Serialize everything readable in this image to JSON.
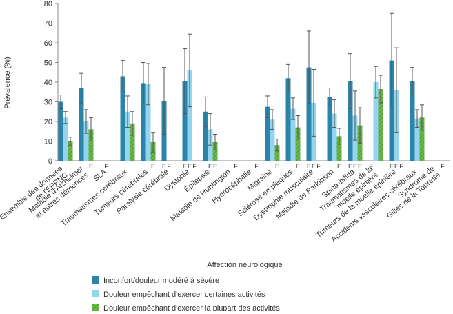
{
  "chart_data": {
    "type": "bar",
    "y_label": "Prévalence (%)",
    "x_label": "Affection neurologique",
    "categories": [
      "Ensemble des données\nde l'EPPNC",
      "Maladie d'Alzheimer\net autres démences",
      "SLA",
      "Traumatismes cérébraux",
      "Tumeurs cérébrales",
      "Paralysie cérébrale",
      "Dystonie",
      "Épilepsie",
      "Maladie de Huntington",
      "Hydrocéphalie",
      "Migraine",
      "Sclérose en plaques",
      "Dystrophie musculaire",
      "Maladie de Parkinson",
      "Spina-bifida",
      "Traumatismes de la\nmoelle épinière",
      "Tumeurs de la moelle épinière",
      "Accidents vasculaires cérébraux",
      "Syndrome de\nGilles de la Tourette"
    ],
    "series": [
      {
        "name": "Inconfort/douleur modéré à sévère",
        "color": "#2b84aa",
        "values": [
          30,
          37,
          null,
          43,
          39.5,
          30.5,
          40.5,
          25,
          null,
          null,
          27.5,
          42,
          47.5,
          32.5,
          40.5,
          null,
          51,
          40.5,
          null
        ],
        "errors": [
          3.5,
          7.5,
          null,
          8,
          10.5,
          17,
          16.5,
          7.5,
          null,
          null,
          5.5,
          7,
          18.5,
          4.5,
          14,
          null,
          24,
          7,
          null
        ],
        "flags": [
          null,
          null,
          null,
          null,
          null,
          "E",
          "E",
          null,
          null,
          null,
          null,
          null,
          "E",
          null,
          "E",
          "F",
          "E",
          null,
          null
        ]
      },
      {
        "name": "Douleur empêchant d'exercer certaines activités",
        "color": "#93d5ee",
        "values": [
          22,
          20,
          null,
          25,
          39,
          null,
          46,
          16,
          null,
          null,
          21,
          26.5,
          29.5,
          24,
          23,
          40,
          36,
          21.5,
          null
        ],
        "errors": [
          3,
          6,
          null,
          8,
          10.5,
          null,
          18.5,
          8,
          null,
          null,
          5,
          5.5,
          17,
          7,
          12.5,
          8,
          21.5,
          4.5,
          null
        ],
        "flags": [
          null,
          null,
          "F",
          null,
          null,
          "F",
          "E",
          "E",
          null,
          null,
          null,
          null,
          "E",
          null,
          "E",
          null,
          "E",
          null,
          null
        ]
      },
      {
        "name": "Douleur empêchant d'exercer la plupart des activités",
        "color": "#6cb94b",
        "values": [
          10,
          16,
          null,
          19,
          9.5,
          null,
          null,
          9.5,
          null,
          null,
          8,
          17,
          null,
          12.5,
          18,
          36.5,
          null,
          22,
          null
        ],
        "errors": [
          2,
          6,
          null,
          6,
          5,
          null,
          null,
          4,
          null,
          null,
          3,
          6,
          null,
          4,
          9,
          7,
          null,
          6.5,
          null
        ],
        "flags": [
          null,
          "E",
          null,
          null,
          "E",
          null,
          "F",
          "E",
          "F",
          "F",
          "E",
          "E",
          "F",
          "E",
          "E",
          null,
          "F",
          null,
          "F"
        ]
      }
    ],
    "ylim": [
      0,
      80
    ],
    "yticks": [
      0,
      10,
      20,
      30,
      40,
      50,
      60,
      70,
      80
    ]
  }
}
